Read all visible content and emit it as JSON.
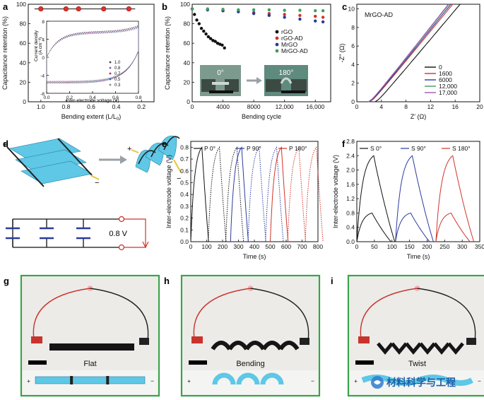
{
  "panels": {
    "a": {
      "label": "a",
      "xlabel": "Bending extent (L/L",
      "xlabel_sub": "0",
      "xlabel_end": ")",
      "ylabel": "Capacitance retention (%)",
      "xticks": [
        "1.0",
        "0.8",
        "0.6",
        "0.4",
        "0.2"
      ],
      "yticks": [
        "0",
        "20",
        "40",
        "60",
        "80",
        "100"
      ],
      "inset": {
        "xlabel": "Inter-electrode voltage (V)",
        "ylabel": "Current density",
        "ylabel2": "(A cm⁻³)",
        "xticks": [
          "0.0",
          "0.2",
          "0.4",
          "0.6",
          "0.8"
        ],
        "yticks": [
          "-8",
          "-4",
          "0",
          "4",
          "8"
        ],
        "legend": [
          "1.0",
          "0.8",
          "0.7",
          "0.5",
          "0.3"
        ]
      }
    },
    "b": {
      "label": "b",
      "xlabel": "Bending cycle",
      "ylabel": "Capacitance retention (%)",
      "xticks": [
        "0",
        "4000",
        "8000",
        "12,000",
        "16,000"
      ],
      "yticks": [
        "0",
        "20",
        "40",
        "60",
        "80",
        "100"
      ],
      "legend": [
        "rGO",
        "rGO-AD",
        "MrGO",
        "MrGO-AD"
      ],
      "photo_labels": [
        "0°",
        "180°"
      ]
    },
    "c": {
      "label": "c",
      "title": "MrGO-AD",
      "xlabel": "Z′ (Ω)",
      "ylabel": "-Z″ (Ω)",
      "xticks": [
        "0",
        "4",
        "8",
        "12",
        "16",
        "20"
      ],
      "yticks": [
        "0",
        "2",
        "4",
        "6",
        "8",
        "10"
      ],
      "legend": [
        "0",
        "1600",
        "6000",
        "12,000",
        "17,000"
      ]
    },
    "d": {
      "label": "d",
      "voltage": "0.8 V",
      "plus": "+",
      "minus": "−"
    },
    "e": {
      "label": "e",
      "xlabel": "Time (s)",
      "ylabel": "Inter-electrode voltage (V)",
      "xticks": [
        "0",
        "100",
        "200",
        "300",
        "400",
        "500",
        "600",
        "700",
        "800"
      ],
      "yticks": [
        "0.0",
        "0.1",
        "0.2",
        "0.3",
        "0.4",
        "0.5",
        "0.6",
        "0.7",
        "0.8"
      ],
      "legend": [
        "P 0°",
        "P 90°",
        "P 180°"
      ]
    },
    "f": {
      "label": "f",
      "xlabel": "Time (s)",
      "ylabel": "Inter-electrode voltage (V)",
      "xticks": [
        "0",
        "50",
        "100",
        "150",
        "200",
        "250",
        "300",
        "350"
      ],
      "yticks": [
        "0.0",
        "0.4",
        "0.8",
        "1.2",
        "1.6",
        "2.0",
        "2.4",
        "2.8"
      ],
      "legend": [
        "S 0°",
        "S 90°",
        "S 180°"
      ]
    },
    "g": {
      "label": "g",
      "caption": "Flat",
      "plus": "+",
      "minus": "−"
    },
    "h": {
      "label": "h",
      "caption": "Bending",
      "plus": "+",
      "minus": "−"
    },
    "i": {
      "label": "i",
      "caption": "Twist",
      "plus": "+",
      "minus": "−"
    }
  },
  "watermark": "材料科学与工程",
  "colors": {
    "black": "#111111",
    "blue": "#2b3b9c",
    "red": "#d0342c",
    "green": "#3fa05a",
    "cyan": "#5ec8e6",
    "frame": "#3aa24a"
  },
  "chart_data": [
    {
      "panel": "a",
      "type": "scatter",
      "x": [
        1.0,
        0.8,
        0.7,
        0.5,
        0.3
      ],
      "y": [
        100,
        100,
        100,
        100,
        100
      ],
      "xlim": [
        1.1,
        0.1
      ],
      "ylim": [
        0,
        105
      ]
    },
    {
      "panel": "b",
      "type": "scatter",
      "xlim": [
        0,
        18000
      ],
      "ylim": [
        0,
        105
      ],
      "series": [
        {
          "name": "rGO",
          "color": "#111111",
          "x": [
            0,
            300,
            600,
            900,
            1200,
            1500,
            1800,
            2100,
            2400,
            2700,
            3000,
            3300,
            3600,
            3900,
            4200
          ],
          "y": [
            100,
            94,
            88,
            84,
            79,
            76,
            73,
            70,
            68,
            66,
            65,
            63,
            62,
            61,
            58
          ]
        },
        {
          "name": "rGO-AD",
          "color": "#d0342c",
          "x": [
            0,
            2000,
            4000,
            6000,
            8000,
            10000,
            12000,
            14000,
            16000,
            17000
          ],
          "y": [
            100,
            99,
            98,
            97,
            96,
            95,
            94,
            93,
            92,
            91
          ]
        },
        {
          "name": "MrGO",
          "color": "#2b3b9c",
          "x": [
            0,
            2000,
            4000,
            6000,
            8000,
            10000,
            12000,
            14000,
            16000,
            17000
          ],
          "y": [
            100,
            99,
            98,
            97,
            95,
            93,
            91,
            89,
            87,
            86
          ]
        },
        {
          "name": "MrGO-AD",
          "color": "#3fa05a",
          "x": [
            0,
            2000,
            4000,
            6000,
            8000,
            10000,
            12000,
            14000,
            16000,
            17000
          ],
          "y": [
            100,
            100,
            99.5,
            99,
            99,
            99,
            98.5,
            98.5,
            98,
            98
          ]
        }
      ]
    },
    {
      "panel": "c",
      "type": "line",
      "xlim": [
        0,
        20
      ],
      "ylim": [
        0,
        10.5
      ],
      "series": [
        {
          "name": "0",
          "color": "#111111",
          "x0": 3.0,
          "x1": 16.8
        },
        {
          "name": "1600",
          "color": "#d0342c",
          "x0": 2.1,
          "x1": 15.6
        },
        {
          "name": "6000",
          "color": "#2b3b9c",
          "x0": 2.0,
          "x1": 15.3
        },
        {
          "name": "12,000",
          "color": "#3fa05a",
          "x0": 1.9,
          "x1": 15.0
        },
        {
          "name": "17,000",
          "color": "#9b59b6",
          "x0": 1.9,
          "x1": 14.9
        }
      ]
    },
    {
      "panel": "e",
      "type": "line",
      "xlim": [
        0,
        800
      ],
      "ylim": [
        0,
        0.85
      ],
      "series": [
        {
          "name": "P 0°",
          "color": "#111111",
          "t0": 0
        },
        {
          "name": "P 90°",
          "color": "#2b3b9c",
          "t0": 250
        },
        {
          "name": "P 180°",
          "color": "#d0342c",
          "t0": 500
        }
      ],
      "peak": 0.8,
      "charge_time": 70,
      "discharge_time": 60
    },
    {
      "panel": "f",
      "type": "line",
      "xlim": [
        0,
        350
      ],
      "ylim": [
        0,
        2.8
      ],
      "series": [
        {
          "name": "S 0°",
          "color": "#111111",
          "t0": 0
        },
        {
          "name": "S 90°",
          "color": "#2b3b9c",
          "t0": 110
        },
        {
          "name": "S 180°",
          "color": "#d0342c",
          "t0": 225
        }
      ],
      "peak": 2.4,
      "charge_time": 48,
      "discharge_time": 60
    }
  ]
}
